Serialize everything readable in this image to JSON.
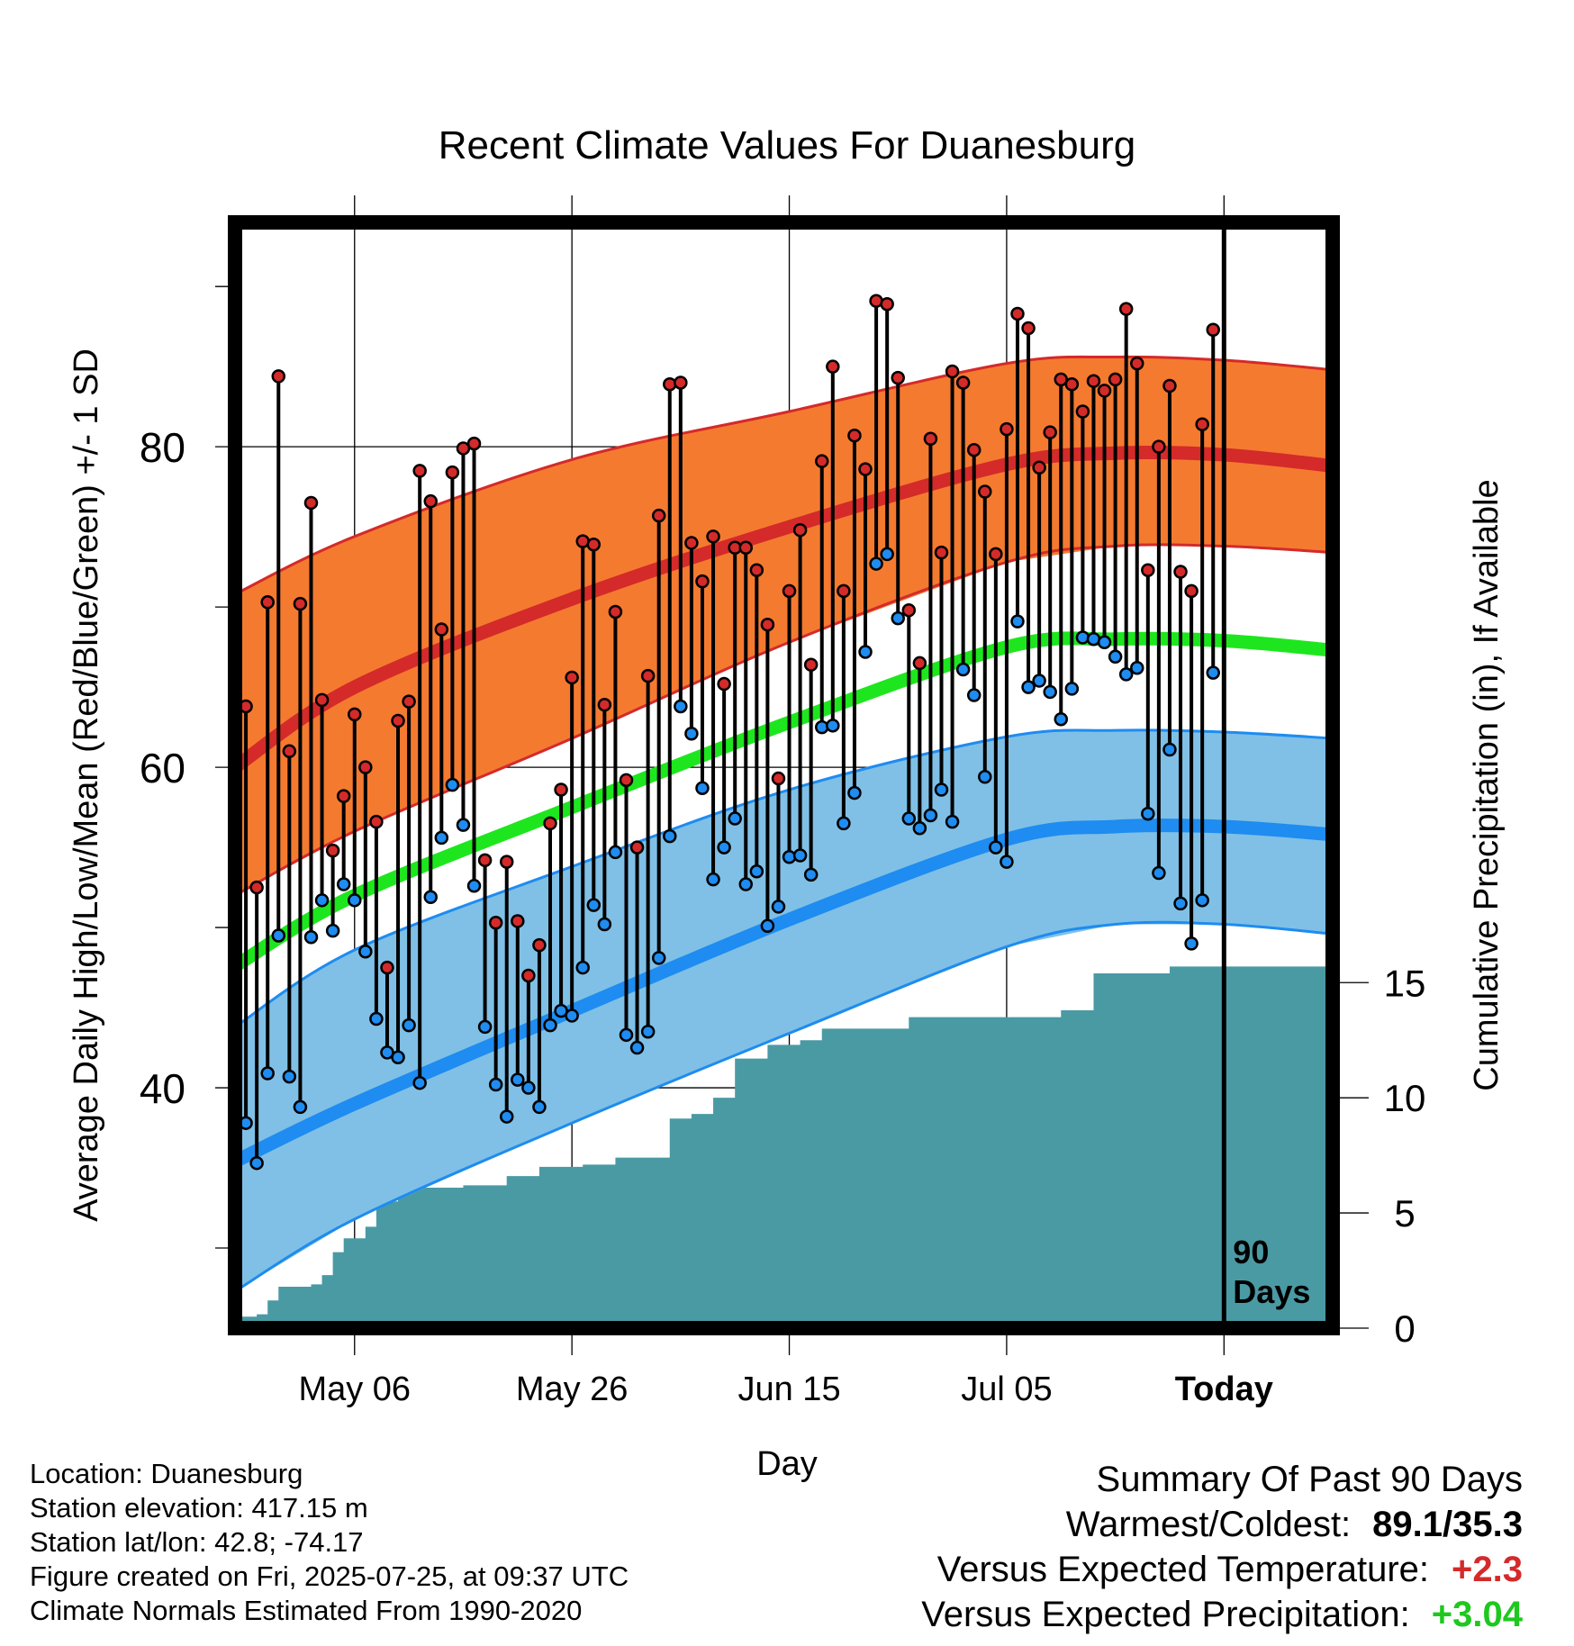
{
  "chart_data": {
    "type": "line",
    "title": "Recent Climate Values For Duanesburg",
    "xlabel": "Day",
    "ylabel": "Average Daily High/Low/Mean (Red/Blue/Green) +/- 1 SD",
    "y2label": "Cumulative Precipitation (in), If Available",
    "x_tick_labels": [
      "May 06",
      "May 26",
      "Jun 15",
      "Jul 05",
      "Today"
    ],
    "y_ticks": [
      "40",
      "60",
      "80"
    ],
    "y2_ticks": [
      "0",
      "5",
      "10",
      "15"
    ],
    "ylim": [
      25,
      94
    ],
    "y2lim": [
      0,
      48
    ],
    "marker_label": "90 Days",
    "days_shown": 90,
    "x_range": [
      "2025-04-25",
      "2025-08-04"
    ],
    "normals": {
      "dates": [
        "2025-04-25",
        "2025-05-06",
        "2025-05-26",
        "2025-06-15",
        "2025-07-05",
        "2025-07-15",
        "2025-07-25",
        "2025-08-04"
      ],
      "high_mean": [
        60.0,
        65.0,
        70.5,
        75.0,
        78.9,
        79.6,
        79.5,
        78.8
      ],
      "high_upper": [
        70.8,
        74.4,
        79.2,
        82.2,
        85.2,
        85.6,
        85.4,
        84.8
      ],
      "high_lower": [
        52.0,
        56.0,
        61.8,
        67.8,
        72.8,
        73.8,
        73.8,
        73.4
      ],
      "mean": [
        47.6,
        52.0,
        57.5,
        62.8,
        67.5,
        68.0,
        67.9,
        67.3
      ],
      "low_mean": [
        35.4,
        39.0,
        44.8,
        50.5,
        55.5,
        56.3,
        56.3,
        55.8
      ],
      "low_upper": [
        43.8,
        48.6,
        53.8,
        58.6,
        61.9,
        62.3,
        62.2,
        61.8
      ],
      "low_lower": [
        27.3,
        31.8,
        37.8,
        43.4,
        48.8,
        50.2,
        50.2,
        49.6
      ]
    },
    "daily": {
      "start_date": "2025-04-26",
      "high": [
        63.8,
        52.5,
        70.3,
        84.4,
        61.0,
        70.2,
        76.5,
        64.2,
        54.8,
        58.2,
        63.3,
        60.0,
        56.6,
        47.5,
        62.9,
        64.1,
        78.5,
        76.6,
        68.6,
        78.4,
        79.9,
        80.2,
        54.2,
        50.3,
        54.1,
        50.4,
        47.0,
        48.9,
        56.5,
        58.6,
        65.6,
        74.1,
        73.9,
        63.9,
        69.7,
        59.2,
        55.0,
        65.7,
        75.7,
        83.9,
        84.0,
        74.0,
        71.6,
        74.4,
        65.2,
        73.7,
        73.7,
        72.3,
        68.9,
        59.3,
        71.0,
        74.8,
        66.4,
        79.1,
        85.0,
        71.0,
        80.7,
        78.6,
        89.1,
        88.9,
        84.3,
        69.8,
        66.5,
        80.5,
        73.4,
        84.7,
        84.0,
        79.8,
        77.2,
        73.3,
        81.1,
        88.3,
        87.4,
        78.7,
        80.9,
        84.2,
        83.9,
        82.2,
        84.1,
        83.5,
        84.2,
        88.6,
        85.2,
        72.3,
        80.0,
        83.8,
        72.2,
        71.0,
        81.4,
        87.3
      ],
      "low": [
        37.8,
        35.3,
        40.9,
        49.5,
        40.7,
        38.8,
        49.4,
        51.7,
        49.8,
        52.7,
        51.7,
        48.5,
        44.3,
        42.2,
        41.9,
        43.9,
        40.3,
        51.9,
        55.6,
        58.9,
        56.4,
        52.6,
        43.8,
        40.2,
        38.2,
        40.5,
        40.0,
        38.8,
        43.9,
        44.8,
        44.5,
        47.5,
        51.4,
        50.2,
        54.7,
        43.3,
        42.5,
        43.5,
        48.1,
        55.7,
        63.8,
        62.1,
        58.7,
        53.0,
        55.0,
        56.8,
        52.7,
        53.5,
        50.1,
        51.3,
        54.4,
        54.5,
        53.3,
        62.5,
        62.6,
        56.5,
        58.4,
        67.2,
        72.7,
        73.3,
        69.3,
        56.8,
        56.2,
        57.0,
        58.6,
        56.6,
        66.1,
        64.5,
        59.4,
        55.0,
        54.1,
        69.1,
        65.0,
        65.4,
        64.7,
        63.0,
        64.9,
        68.1,
        68.0,
        67.8,
        66.9,
        65.8,
        66.2,
        57.1,
        53.4,
        61.1,
        51.5,
        49.0,
        51.7,
        65.9
      ]
    },
    "precip_cumulative": {
      "dates": [
        "2025-04-25",
        "2025-04-27",
        "2025-04-28",
        "2025-04-29",
        "2025-05-02",
        "2025-05-03",
        "2025-05-04",
        "2025-05-05",
        "2025-05-07",
        "2025-05-08",
        "2025-05-10",
        "2025-05-12",
        "2025-05-16",
        "2025-05-20",
        "2025-05-23",
        "2025-05-27",
        "2025-05-30",
        "2025-06-04",
        "2025-06-06",
        "2025-06-08",
        "2025-06-10",
        "2025-06-13",
        "2025-06-16",
        "2025-06-18",
        "2025-06-26",
        "2025-07-10",
        "2025-07-13",
        "2025-07-20",
        "2025-07-25",
        "2025-08-04"
      ],
      "values": [
        0.5,
        0.6,
        1.2,
        1.8,
        1.9,
        2.3,
        3.3,
        3.9,
        4.4,
        5.5,
        6.0,
        6.1,
        6.2,
        6.6,
        7.0,
        7.1,
        7.4,
        9.1,
        9.3,
        10.0,
        11.7,
        12.3,
        12.5,
        13.0,
        13.5,
        13.8,
        15.4,
        15.7,
        15.7,
        15.7
      ]
    }
  },
  "info": {
    "location": "Location: Duanesburg",
    "elevation": "Station elevation: 417.15 m",
    "latlon": "Station lat/lon: 42.8; -74.17",
    "created": "Figure created on Fri, 2025-07-25, at 09:37 UTC",
    "normals": "Climate Normals Estimated From 1990-2020"
  },
  "summary": {
    "title": "Summary Of Past 90 Days",
    "warmest_label": "Warmest/Coldest:",
    "warmest_value": "89.1/35.3",
    "temp_label": "Versus Expected Temperature:",
    "temp_value": "+2.3",
    "precip_label": "Versus Expected Precipitation:",
    "precip_value": "+3.04"
  },
  "colors": {
    "high_band": "#f47a30",
    "high_line": "#d42a2a",
    "low_band": "#80c0e6",
    "low_line": "#1e8cf0",
    "mean_line": "#1ee61e",
    "precip": "#4a9aa4",
    "temp_value": "#d42a2a",
    "precip_value": "#1ec81e"
  }
}
